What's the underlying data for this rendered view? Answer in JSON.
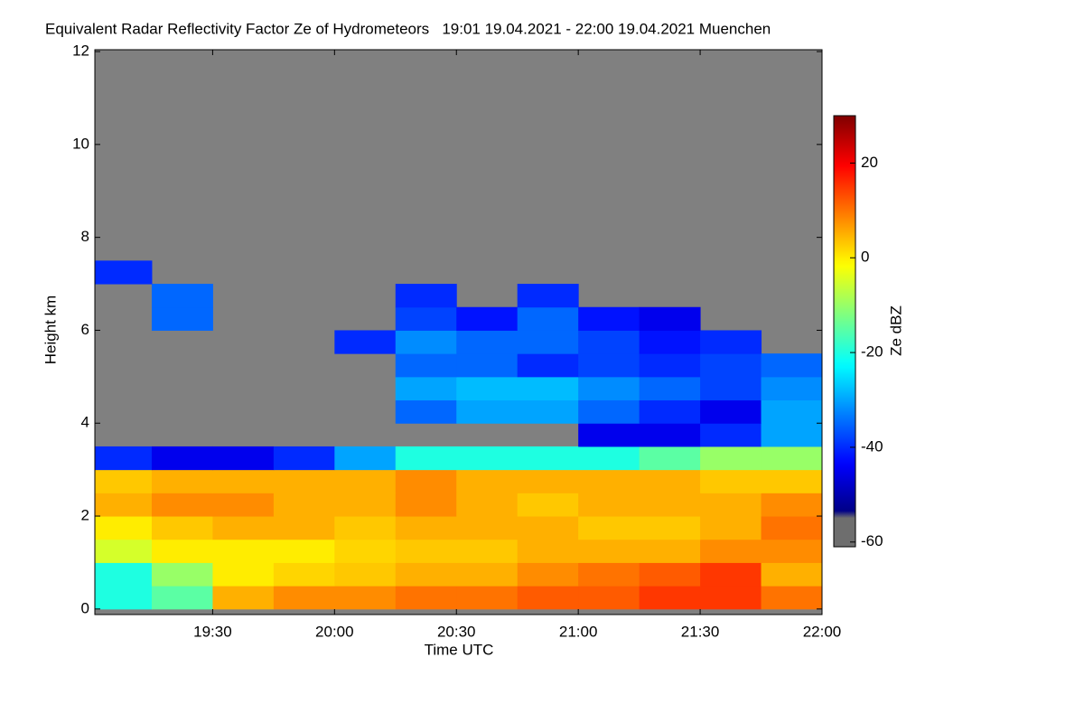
{
  "chart_data": {
    "type": "heatmap",
    "title": "Equivalent Radar Reflectivity Factor Ze of Hydrometeors   19:01 19.04.2021 - 22:00 19.04.2021 Muenchen",
    "x_label": "Time UTC",
    "y_label": "Height km",
    "colorbar_label": "Ze dBZ",
    "colormap": "jet",
    "xlim": [
      19.0167,
      22.0
    ],
    "xticks": [
      {
        "value": 19.5,
        "label": "19:30"
      },
      {
        "value": 20.0,
        "label": "20:00"
      },
      {
        "value": 20.5,
        "label": "20:30"
      },
      {
        "value": 21.0,
        "label": "21:00"
      },
      {
        "value": 21.5,
        "label": "21:30"
      },
      {
        "value": 22.0,
        "label": "22:00"
      }
    ],
    "ylim": [
      -0.12,
      12.04
    ],
    "yticks": [
      0,
      2,
      4,
      6,
      8,
      10,
      12
    ],
    "clim": [
      -61,
      30
    ],
    "cticks": [
      -60,
      -40,
      -20,
      0,
      20
    ],
    "x_edges": [
      19.0167,
      19.25,
      19.5,
      19.75,
      20.0,
      20.25,
      20.5,
      20.75,
      21.0,
      21.25,
      21.5,
      21.75,
      22.0
    ],
    "y_edges": [
      0,
      0.5,
      1,
      1.5,
      2,
      2.5,
      3,
      3.5,
      4,
      4.5,
      5,
      5.5,
      6,
      6.5,
      7,
      7.5
    ],
    "z": [
      [
        -20,
        -15,
        5,
        8,
        8,
        10,
        10,
        12,
        12,
        15,
        15,
        10
      ],
      [
        -20,
        -10,
        0,
        2,
        3,
        5,
        5,
        8,
        10,
        12,
        15,
        5
      ],
      [
        -5,
        0,
        0,
        0,
        2,
        3,
        3,
        5,
        5,
        5,
        8,
        8
      ],
      [
        0,
        3,
        5,
        5,
        3,
        5,
        5,
        5,
        3,
        3,
        5,
        10
      ],
      [
        5,
        8,
        8,
        5,
        5,
        8,
        5,
        3,
        5,
        5,
        5,
        8
      ],
      [
        3,
        5,
        5,
        5,
        5,
        8,
        5,
        5,
        5,
        5,
        3,
        3
      ],
      [
        -40,
        -45,
        -45,
        -40,
        -30,
        -20,
        -20,
        -20,
        -20,
        -15,
        -10,
        -10
      ],
      [
        null,
        null,
        null,
        null,
        null,
        null,
        null,
        null,
        -45,
        -45,
        -40,
        -30
      ],
      [
        null,
        null,
        null,
        null,
        null,
        -35,
        -30,
        -30,
        -35,
        -40,
        -45,
        -30
      ],
      [
        null,
        null,
        null,
        null,
        null,
        -30,
        -28,
        -28,
        -32,
        -35,
        -38,
        -32
      ],
      [
        null,
        null,
        null,
        null,
        null,
        -35,
        -35,
        -40,
        -38,
        -40,
        -38,
        -35
      ],
      [
        null,
        null,
        null,
        null,
        -40,
        -32,
        -35,
        -35,
        -38,
        -42,
        -40,
        null
      ],
      [
        null,
        -35,
        null,
        null,
        null,
        -38,
        -42,
        -35,
        -42,
        -45,
        null,
        null
      ],
      [
        null,
        -35,
        null,
        null,
        null,
        -40,
        null,
        -40,
        null,
        null,
        null,
        null
      ],
      [
        -40,
        null,
        null,
        null,
        null,
        null,
        null,
        null,
        null,
        null,
        null,
        null
      ]
    ]
  }
}
